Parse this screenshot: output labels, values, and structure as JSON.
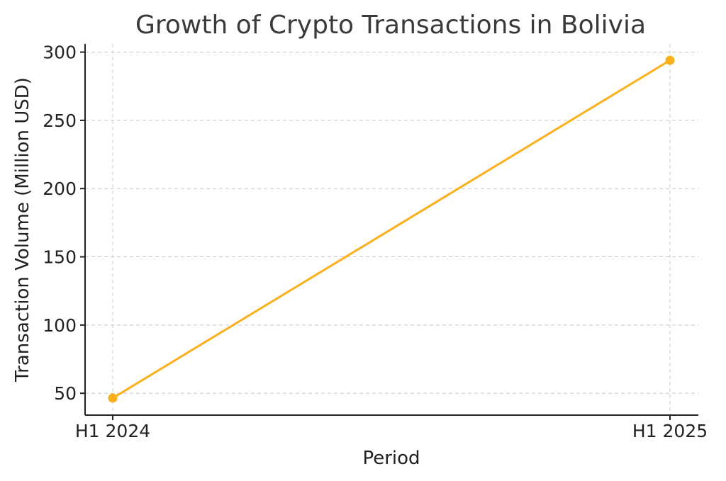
{
  "chart_data": {
    "type": "line",
    "title": "Growth of Crypto Transactions in Bolivia",
    "xlabel": "Period",
    "ylabel": "Transaction Volume (Million USD)",
    "categories": [
      "H1 2024",
      "H1 2025"
    ],
    "series": [
      {
        "values": [
          46.5,
          294
        ]
      }
    ],
    "yticks": [
      50,
      100,
      150,
      200,
      250,
      300
    ],
    "ylim": [
      34,
      306
    ],
    "grid": true,
    "line_color": "#FBB01B"
  }
}
